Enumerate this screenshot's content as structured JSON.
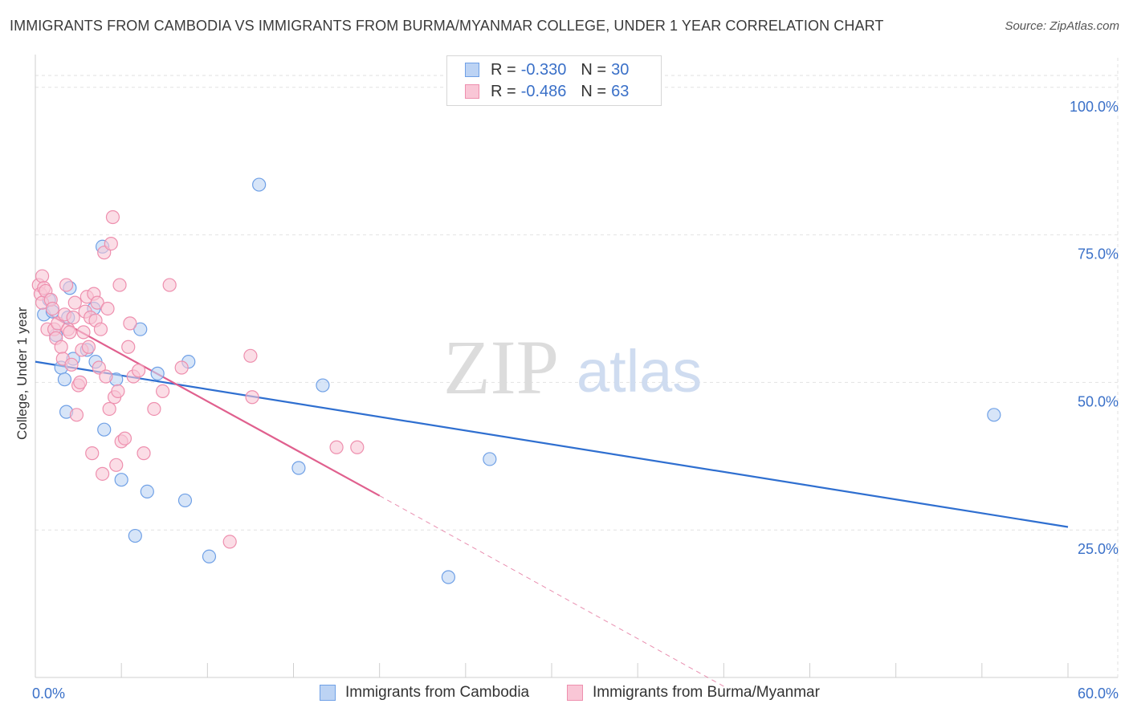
{
  "chart_data": {
    "type": "scatter",
    "title": "IMMIGRANTS FROM CAMBODIA VS IMMIGRANTS FROM BURMA/MYANMAR COLLEGE, UNDER 1 YEAR CORRELATION CHART",
    "source": "Source: ZipAtlas.com",
    "xlabel": "",
    "ylabel": "College, Under 1 year",
    "xlim": [
      0,
      60
    ],
    "ylim": [
      0,
      105
    ],
    "x_tick_labels": [
      "0.0%",
      "60.0%"
    ],
    "y_ticks": [
      25,
      50,
      75,
      100
    ],
    "y_tick_labels": [
      "25.0%",
      "50.0%",
      "75.0%",
      "100.0%"
    ],
    "watermark": {
      "zip": "ZIP",
      "atlas": "atlas"
    },
    "legend": {
      "r_label": "R =",
      "n_label": "N =",
      "entries": [
        {
          "r": "-0.330",
          "n": "30"
        },
        {
          "r": "-0.486",
          "n": "63"
        }
      ]
    },
    "series": [
      {
        "name": "Immigrants from Cambodia",
        "color": "#6fa0e6",
        "fill": "#bcd3f4",
        "trend_color": "#2f6fd0",
        "trend": {
          "x0": 0,
          "y0": 53.5,
          "x1": 60,
          "y1": 25.5
        },
        "points": [
          [
            0.5,
            61.5
          ],
          [
            0.8,
            64
          ],
          [
            1.0,
            62
          ],
          [
            1.2,
            58
          ],
          [
            1.5,
            52.5
          ],
          [
            1.7,
            50.5
          ],
          [
            1.8,
            45
          ],
          [
            1.9,
            61
          ],
          [
            2.0,
            66
          ],
          [
            2.2,
            54
          ],
          [
            3.0,
            55.5
          ],
          [
            3.5,
            53.5
          ],
          [
            3.9,
            73
          ],
          [
            3.4,
            62.5
          ],
          [
            4.0,
            42
          ],
          [
            4.7,
            50.5
          ],
          [
            5.0,
            33.5
          ],
          [
            5.8,
            24
          ],
          [
            6.1,
            59
          ],
          [
            6.5,
            31.5
          ],
          [
            7.1,
            51.5
          ],
          [
            8.7,
            30
          ],
          [
            8.9,
            53.5
          ],
          [
            10.1,
            20.5
          ],
          [
            13.0,
            83.5
          ],
          [
            15.3,
            35.5
          ],
          [
            16.7,
            49.5
          ],
          [
            24.0,
            17
          ],
          [
            26.4,
            37
          ],
          [
            55.7,
            44.5
          ]
        ]
      },
      {
        "name": "Immigrants from Burma/Myanmar",
        "color": "#ee8fae",
        "fill": "#f9c6d6",
        "trend_color": "#e0608e",
        "trend": {
          "x0": 0.8,
          "y0": 61.5,
          "x1": 20,
          "y1": 30.8
        },
        "trend_ext": {
          "x0": 20,
          "y0": 30.8,
          "x1": 40,
          "y1": -1.5
        },
        "points": [
          [
            0.2,
            66.5
          ],
          [
            0.3,
            65
          ],
          [
            0.4,
            68
          ],
          [
            0.4,
            63.5
          ],
          [
            0.5,
            66
          ],
          [
            0.6,
            65.5
          ],
          [
            0.7,
            59
          ],
          [
            0.9,
            64
          ],
          [
            1.0,
            62.5
          ],
          [
            1.1,
            59
          ],
          [
            1.2,
            57.5
          ],
          [
            1.3,
            60
          ],
          [
            1.5,
            56
          ],
          [
            1.6,
            54
          ],
          [
            1.7,
            61.5
          ],
          [
            1.8,
            66.5
          ],
          [
            1.9,
            59
          ],
          [
            2.0,
            58.5
          ],
          [
            2.1,
            53
          ],
          [
            2.2,
            61
          ],
          [
            2.3,
            63.5
          ],
          [
            2.4,
            44.5
          ],
          [
            2.5,
            49.5
          ],
          [
            2.6,
            50
          ],
          [
            2.7,
            55.5
          ],
          [
            2.8,
            58.5
          ],
          [
            2.9,
            62
          ],
          [
            3.0,
            64.5
          ],
          [
            3.1,
            56
          ],
          [
            3.2,
            61
          ],
          [
            3.3,
            38
          ],
          [
            3.4,
            65
          ],
          [
            3.5,
            60.5
          ],
          [
            3.6,
            63.5
          ],
          [
            3.7,
            52.5
          ],
          [
            3.8,
            59
          ],
          [
            3.9,
            34.5
          ],
          [
            4.0,
            72
          ],
          [
            4.1,
            51
          ],
          [
            4.2,
            62.5
          ],
          [
            4.3,
            45.5
          ],
          [
            4.4,
            73.5
          ],
          [
            4.5,
            78
          ],
          [
            4.6,
            47.5
          ],
          [
            4.7,
            36
          ],
          [
            4.8,
            48.5
          ],
          [
            4.9,
            66.5
          ],
          [
            5.0,
            40
          ],
          [
            5.2,
            40.5
          ],
          [
            5.4,
            56
          ],
          [
            5.5,
            60
          ],
          [
            5.7,
            51
          ],
          [
            6.0,
            52
          ],
          [
            6.3,
            38
          ],
          [
            6.9,
            45.5
          ],
          [
            7.4,
            48.5
          ],
          [
            7.8,
            66.5
          ],
          [
            8.5,
            52.5
          ],
          [
            11.3,
            23
          ],
          [
            12.5,
            54.5
          ],
          [
            12.6,
            47.5
          ],
          [
            17.5,
            39
          ],
          [
            18.7,
            39
          ]
        ]
      }
    ]
  }
}
